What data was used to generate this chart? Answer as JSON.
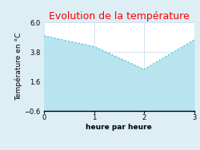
{
  "title": "Evolution de la température",
  "title_color": "#ff0000",
  "xlabel": "heure par heure",
  "ylabel": "Température en °C",
  "x": [
    0,
    1,
    2,
    3
  ],
  "y": [
    5.0,
    4.2,
    2.5,
    4.7
  ],
  "ylim": [
    -0.6,
    6.0
  ],
  "xlim": [
    0,
    3
  ],
  "yticks": [
    -0.6,
    1.6,
    3.8,
    6.0
  ],
  "xticks": [
    0,
    1,
    2,
    3
  ],
  "fill_color": "#b8e4f0",
  "fill_alpha": 1.0,
  "line_color": "#5bc8e0",
  "line_style": "dotted",
  "line_width": 1.2,
  "bg_color": "#ddeef5",
  "fig_bg_color": "#ddeef5",
  "plot_bg_color": "#ffffff",
  "grid_color": "#ccddee",
  "title_fontsize": 9,
  "label_fontsize": 6.5,
  "tick_fontsize": 6
}
